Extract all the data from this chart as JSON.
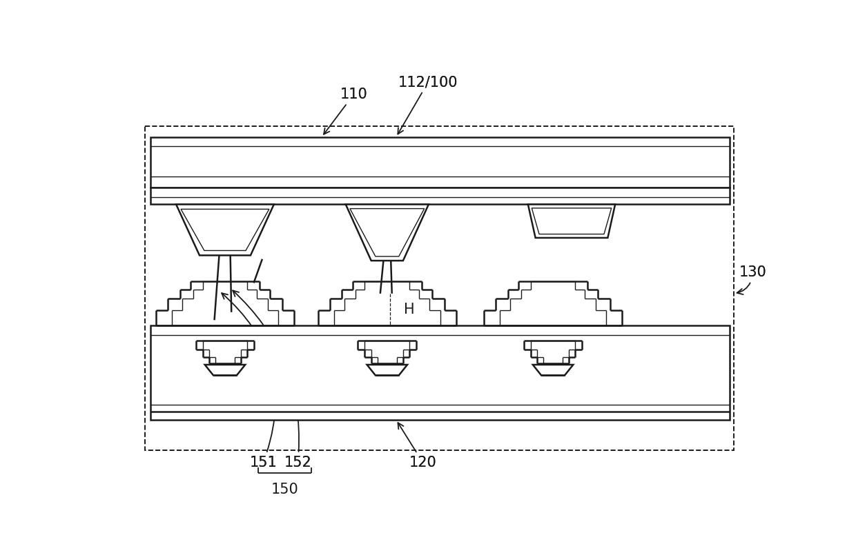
{
  "bg_color": "#ffffff",
  "lc": "#1a1a1a",
  "lw": 1.8,
  "tlw": 1.0,
  "fig_width": 12.4,
  "fig_height": 7.89,
  "dpi": 100
}
